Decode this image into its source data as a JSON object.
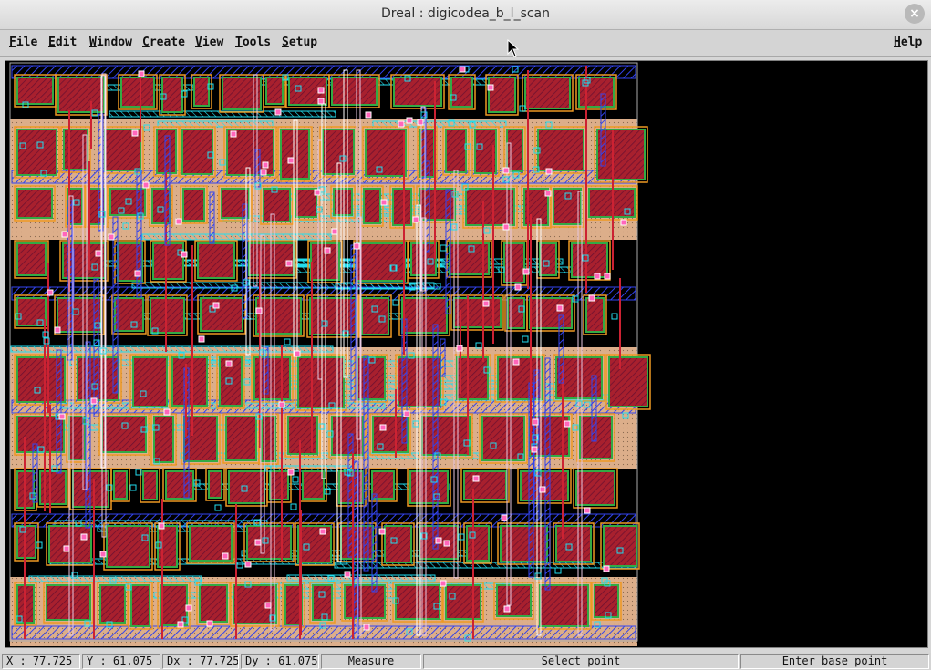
{
  "window": {
    "title": "Dreal : digicodea_b_l_scan",
    "close_glyph": "×"
  },
  "menubar": {
    "items": [
      {
        "key": "F",
        "rest": "ile"
      },
      {
        "key": "E",
        "rest": "dit"
      },
      {
        "key": "W",
        "rest": "indow"
      },
      {
        "key": "C",
        "rest": "reate"
      },
      {
        "key": "V",
        "rest": "iew"
      },
      {
        "key": "T",
        "rest": "ools"
      },
      {
        "key": "S",
        "rest": "etup"
      }
    ],
    "help": {
      "key": "H",
      "rest": "elp"
    }
  },
  "canvas": {
    "background": "#000000",
    "layer_colors": {
      "nwell": "#e0b08c",
      "poly": "#cc2233",
      "metal1": "#3344ee",
      "metal2": "#22ddee",
      "via": "#ff66bb",
      "diffusion": "#33aa44",
      "implant": "#ee9922",
      "outline": "#aaaaaa"
    }
  },
  "statusbar": {
    "x": "X : 77.725",
    "y": "Y : 61.075",
    "dx": "Dx : 77.725",
    "dy": "Dy : 61.075",
    "mode": "Measure",
    "prompt": "Select point",
    "hint": "Enter base point"
  }
}
